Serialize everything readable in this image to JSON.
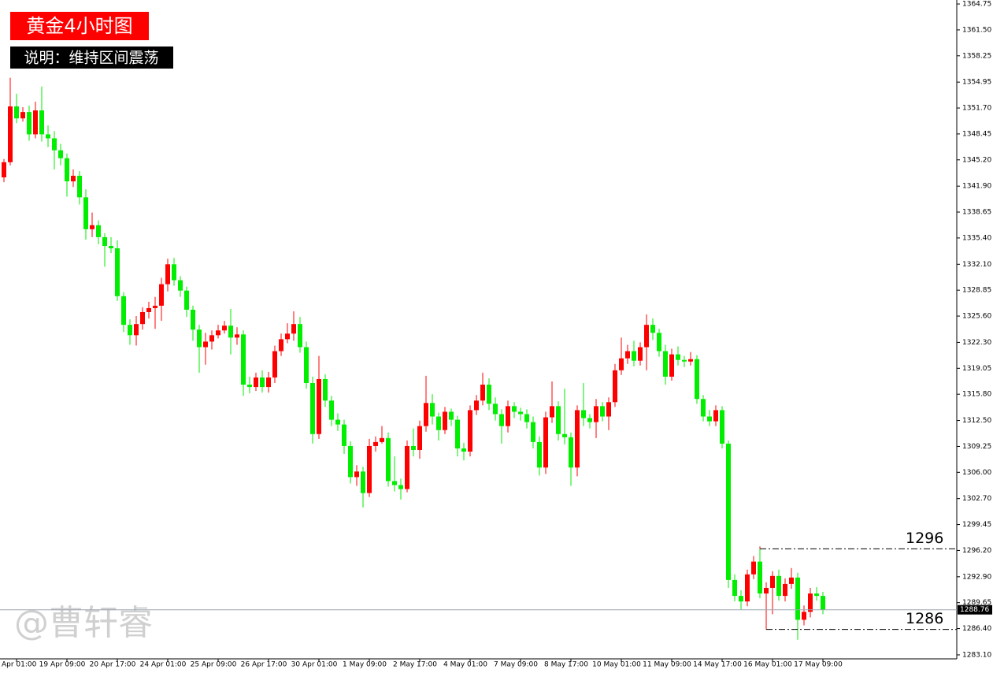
{
  "chart_data": {
    "type": "candlestick",
    "title": "黄金4小时图",
    "subtitle": "说明：维持区间震荡",
    "watermark": "@曹轩睿",
    "up_color": "#ff0000",
    "down_color": "#00ee00",
    "categories": [
      null,
      null,
      "Apr 01:00",
      null,
      null,
      null,
      null,
      null,
      null,
      null,
      "19 Apr 09:00",
      null,
      null,
      null,
      null,
      null,
      null,
      null,
      "20 Apr 17:00",
      null,
      null,
      null,
      null,
      null,
      null,
      null,
      "24 Apr 01:00",
      null,
      null,
      null,
      null,
      null,
      null,
      null,
      "25 Apr 09:00",
      null,
      null,
      null,
      null,
      null,
      null,
      null,
      "26 Apr 17:00",
      null,
      null,
      null,
      null,
      null,
      null,
      null,
      "30 Apr 01:00",
      null,
      null,
      null,
      null,
      null,
      null,
      null,
      "1 May 09:00",
      null,
      null,
      null,
      null,
      null,
      null,
      null,
      "2 May 17:00",
      null,
      null,
      null,
      null,
      null,
      null,
      null,
      "4 May 01:00",
      null,
      null,
      null,
      null,
      null,
      null,
      null,
      "7 May 09:00",
      null,
      null,
      null,
      null,
      null,
      null,
      null,
      "8 May 17:00",
      null,
      null,
      null,
      null,
      null,
      null,
      null,
      "10 May 01:00",
      null,
      null,
      null,
      null,
      null,
      null,
      null,
      "11 May 09:00",
      null,
      null,
      null,
      null,
      null,
      null,
      null,
      "14 May 17:00",
      null,
      null,
      null,
      null,
      null,
      null,
      null,
      "16 May 01:00",
      null,
      null,
      null,
      null,
      null,
      null,
      null,
      "17 May 09:00"
    ],
    "open": [
      1343.0,
      1344.9,
      1351.9,
      1350.4,
      1351.2,
      1348.4,
      1351.4,
      1348.4,
      1347.9,
      1346.4,
      1345.4,
      1342.5,
      1343.2,
      1340.5,
      1336.5,
      1337.0,
      1335.5,
      1334.4,
      1334.1,
      1328.1,
      1324.5,
      1323.2,
      1324.6,
      1326.1,
      1326.6,
      1326.9,
      1329.6,
      1332.1,
      1330.1,
      1328.8,
      1326.4,
      1323.9,
      1321.7,
      1322.4,
      1323.2,
      1323.8,
      1324.4,
      1322.9,
      1323.3,
      1317.0,
      1316.7,
      1317.9,
      1316.7,
      1317.9,
      1321.2,
      1322.7,
      1323.4,
      1324.6,
      1321.7,
      1317.2,
      1310.8,
      1317.7,
      1315.0,
      1312.6,
      1312.0,
      1309.3,
      1305.4,
      1306.1,
      1303.4,
      1309.3,
      1309.8,
      1310.3,
      1304.9,
      1304.4,
      1303.9,
      1309.3,
      1308.8,
      1311.8,
      1314.7,
      1313.0,
      1311.3,
      1313.6,
      1312.6,
      1309.0,
      1308.6,
      1313.8,
      1315.0,
      1317.0,
      1314.6,
      1313.3,
      1311.8,
      1314.3,
      1313.6,
      1313.3,
      1312.3,
      1309.8,
      1306.6,
      1312.9,
      1314.3,
      1310.8,
      1310.4,
      1306.6,
      1313.8,
      1312.8,
      1312.3,
      1314.3,
      1313.0,
      1314.8,
      1318.8,
      1320.3,
      1321.2,
      1320.0,
      1321.7,
      1324.5,
      1323.5,
      1321.2,
      1318.0,
      1320.8,
      1320.1,
      1319.9,
      1320.2,
      1315.2,
      1313.0,
      1312.4,
      1313.8,
      1309.6,
      1292.5,
      1290.5,
      1289.8,
      1293.2,
      1294.8,
      1290.8,
      1291.5,
      1293.0,
      1290.5,
      1292.0,
      1292.8,
      1287.5,
      1288.5,
      1290.8,
      1290.5
    ],
    "high": [
      1345.3,
      1355.5,
      1353.5,
      1351.8,
      1352.0,
      1352.5,
      1354.4,
      1349.5,
      1348.8,
      1347.2,
      1346.0,
      1344.0,
      1343.8,
      1341.5,
      1338.6,
      1337.6,
      1336.0,
      1335.5,
      1335.1,
      1328.6,
      1325.2,
      1325.6,
      1326.7,
      1327.4,
      1328.0,
      1330.4,
      1332.8,
      1332.9,
      1330.6,
      1329.3,
      1326.9,
      1324.5,
      1323.5,
      1323.8,
      1324.5,
      1325.0,
      1326.5,
      1324.2,
      1323.8,
      1318.0,
      1318.5,
      1318.8,
      1318.6,
      1321.9,
      1323.4,
      1324.7,
      1326.2,
      1325.5,
      1322.4,
      1318.0,
      1320.6,
      1318.3,
      1315.6,
      1313.4,
      1312.6,
      1309.9,
      1306.9,
      1306.7,
      1310.2,
      1310.5,
      1311.8,
      1311.0,
      1308.0,
      1305.2,
      1310.0,
      1311.5,
      1312.5,
      1318.1,
      1315.8,
      1313.5,
      1314.2,
      1314.0,
      1313.1,
      1309.7,
      1314.4,
      1315.7,
      1318.5,
      1317.8,
      1315.4,
      1313.9,
      1315.0,
      1314.8,
      1314.1,
      1313.9,
      1313.0,
      1310.5,
      1313.6,
      1317.4,
      1314.9,
      1316.5,
      1311.0,
      1314.4,
      1317.2,
      1313.3,
      1315.2,
      1314.8,
      1315.4,
      1319.6,
      1322.9,
      1322.0,
      1322.5,
      1322.3,
      1325.8,
      1325.3,
      1324.0,
      1322.0,
      1321.5,
      1321.8,
      1320.6,
      1321.1,
      1320.7,
      1315.7,
      1313.8,
      1314.4,
      1314.3,
      1310.0,
      1293.2,
      1291.2,
      1293.8,
      1295.5,
      1296.7,
      1292.2,
      1293.6,
      1293.8,
      1292.7,
      1294.0,
      1293.4,
      1289.3,
      1291.5,
      1291.6,
      1291.0
    ],
    "low": [
      1342.4,
      1344.5,
      1349.8,
      1350.0,
      1347.6,
      1347.9,
      1347.5,
      1346.8,
      1344.0,
      1344.5,
      1340.6,
      1341.8,
      1339.6,
      1335.2,
      1335.5,
      1334.6,
      1331.8,
      1333.5,
      1327.5,
      1323.6,
      1322.0,
      1321.9,
      1323.9,
      1325.3,
      1324.0,
      1325.0,
      1328.7,
      1329.4,
      1328.0,
      1325.5,
      1322.5,
      1318.5,
      1319.5,
      1321.4,
      1322.8,
      1323.4,
      1320.8,
      1322.0,
      1315.6,
      1315.9,
      1316.2,
      1316.0,
      1316.0,
      1317.2,
      1320.6,
      1322.2,
      1322.5,
      1321.0,
      1316.5,
      1309.6,
      1310.2,
      1314.2,
      1311.8,
      1311.2,
      1308.3,
      1304.6,
      1304.3,
      1301.6,
      1302.9,
      1308.6,
      1309.6,
      1304.2,
      1303.6,
      1302.6,
      1303.5,
      1308.0,
      1307.7,
      1311.1,
      1312.0,
      1310.0,
      1310.8,
      1311.8,
      1308.0,
      1307.5,
      1308.0,
      1313.2,
      1314.4,
      1313.8,
      1312.5,
      1309.6,
      1311.0,
      1312.8,
      1312.5,
      1311.5,
      1309.0,
      1305.6,
      1305.8,
      1312.2,
      1310.0,
      1309.5,
      1304.3,
      1305.5,
      1311.8,
      1311.5,
      1310.3,
      1312.4,
      1311.3,
      1314.2,
      1318.2,
      1319.6,
      1319.3,
      1319.4,
      1318.8,
      1322.6,
      1320.5,
      1317.0,
      1317.5,
      1319.4,
      1319.2,
      1319.4,
      1314.6,
      1312.4,
      1311.8,
      1311.8,
      1309.0,
      1291.5,
      1289.8,
      1288.8,
      1289.2,
      1292.6,
      1290.2,
      1286.3,
      1288.2,
      1289.9,
      1289.8,
      1291.4,
      1285.0,
      1286.8,
      1287.8,
      1289.9,
      1288.2
    ],
    "close": [
      1344.9,
      1351.9,
      1350.4,
      1351.2,
      1348.4,
      1351.4,
      1348.4,
      1347.9,
      1346.4,
      1345.4,
      1342.5,
      1343.2,
      1340.5,
      1336.5,
      1337.0,
      1335.5,
      1334.4,
      1334.1,
      1328.1,
      1324.5,
      1323.2,
      1324.6,
      1326.1,
      1326.6,
      1326.9,
      1329.6,
      1332.1,
      1330.1,
      1328.8,
      1326.4,
      1323.9,
      1321.7,
      1322.4,
      1323.2,
      1323.8,
      1324.4,
      1322.9,
      1323.3,
      1317.0,
      1316.7,
      1317.9,
      1316.7,
      1317.9,
      1321.2,
      1322.7,
      1323.4,
      1324.6,
      1321.7,
      1317.2,
      1310.8,
      1317.7,
      1315.0,
      1312.6,
      1312.0,
      1309.3,
      1305.4,
      1306.1,
      1303.4,
      1309.3,
      1309.8,
      1310.3,
      1304.9,
      1304.4,
      1303.9,
      1309.3,
      1308.8,
      1311.8,
      1314.7,
      1313.0,
      1311.3,
      1313.6,
      1312.6,
      1309.0,
      1308.6,
      1313.8,
      1315.0,
      1317.0,
      1314.6,
      1313.3,
      1311.8,
      1314.3,
      1313.6,
      1313.3,
      1312.3,
      1309.8,
      1306.6,
      1312.9,
      1314.3,
      1310.8,
      1310.4,
      1306.6,
      1313.8,
      1312.8,
      1312.3,
      1314.3,
      1313.0,
      1314.8,
      1318.8,
      1320.3,
      1321.2,
      1320.0,
      1321.7,
      1324.5,
      1323.5,
      1321.2,
      1318.0,
      1320.8,
      1320.1,
      1319.9,
      1320.2,
      1315.2,
      1313.0,
      1312.4,
      1313.8,
      1309.6,
      1292.5,
      1290.5,
      1289.8,
      1293.2,
      1294.8,
      1290.8,
      1291.5,
      1293.0,
      1290.5,
      1292.0,
      1292.8,
      1287.5,
      1288.5,
      1290.8,
      1290.5,
      1288.76
    ],
    "ylim": [
      1282.6,
      1365.25
    ],
    "yticks": [
      {
        "value": 1283.1,
        "label": "1283.10"
      },
      {
        "value": 1286.4,
        "label": "1286.40"
      },
      1289.65,
      {
        "value": 1292.9,
        "label": "1292.90"
      },
      {
        "value": 1296.2,
        "label": "1296.20"
      },
      1299.45,
      {
        "value": 1302.7,
        "label": "1302.70"
      },
      {
        "value": 1306,
        "label": "1306.00"
      },
      1309.25,
      {
        "value": 1312.5,
        "label": "1312.50"
      },
      {
        "value": 1315.8,
        "label": "1315.80"
      },
      1319.05,
      {
        "value": 1322.3,
        "label": "1322.30"
      },
      {
        "value": 1325.6,
        "label": "1325.60"
      },
      1328.85,
      {
        "value": 1332.1,
        "label": "1332.10"
      },
      {
        "value": 1335.4,
        "label": "1335.40"
      },
      1338.65,
      {
        "value": 1341.9,
        "label": "1341.90"
      },
      {
        "value": 1345.2,
        "label": "1345.20"
      },
      1348.45,
      {
        "value": 1351.7,
        "label": "1351.70"
      },
      1354.95,
      {
        "value": 1358.25,
        "label": "1358.25"
      },
      {
        "value": 1361.5,
        "label": "1361.50"
      },
      1364.75
    ],
    "levels": [
      {
        "value": 1296.4,
        "label": "1296",
        "start": 120
      },
      {
        "value": 1286.3,
        "label": "1286",
        "start": 121
      }
    ],
    "grid": false
  }
}
